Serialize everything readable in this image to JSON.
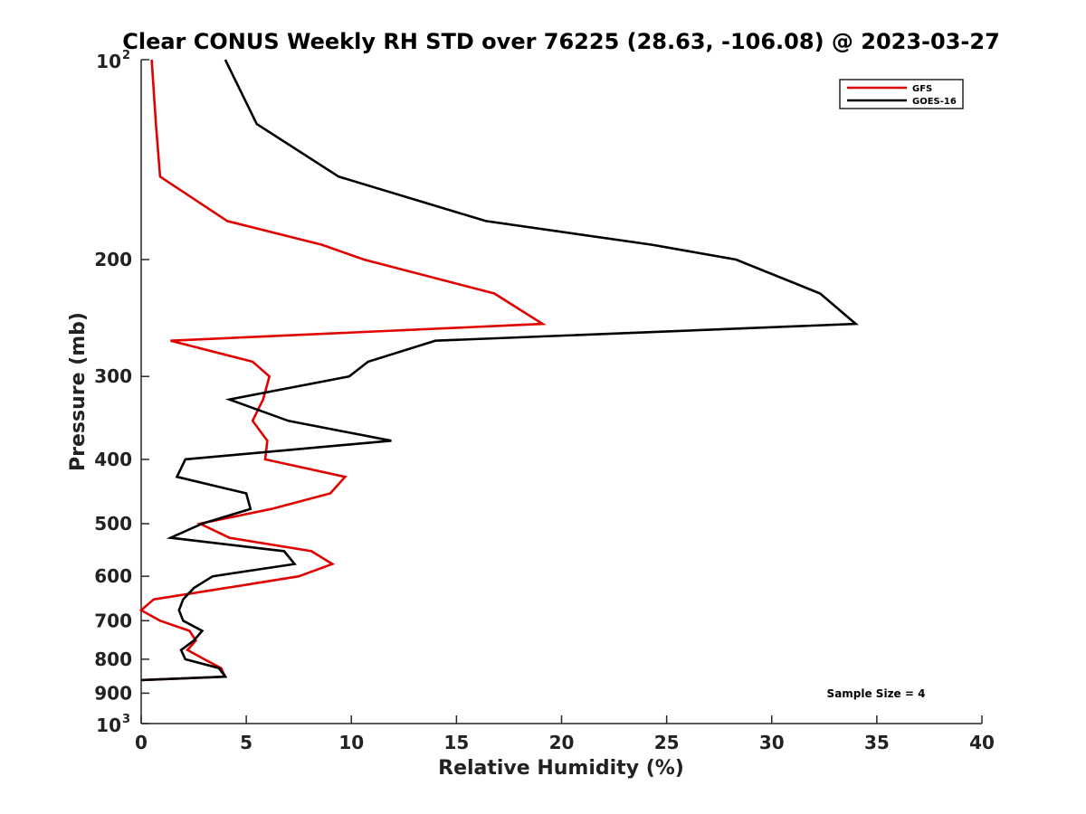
{
  "chart_data": {
    "type": "line",
    "title": "Clear CONUS Weekly RH STD over 76225 (28.63, -106.08) @ 2023-03-27",
    "xlabel": "Relative Humidity (%)",
    "ylabel": "Pressure (mb)",
    "xlim": [
      0,
      40
    ],
    "ylim": [
      100,
      1000
    ],
    "y_scale": "log",
    "y_reversed": true,
    "x_ticks": [
      0,
      5,
      10,
      15,
      20,
      25,
      30,
      35,
      40
    ],
    "y_ticks": [
      {
        "value": 100,
        "base": "10",
        "exp": "2"
      },
      {
        "value": 200,
        "label": "200"
      },
      {
        "value": 300,
        "label": "300"
      },
      {
        "value": 400,
        "label": "400"
      },
      {
        "value": 500,
        "label": "500"
      },
      {
        "value": 600,
        "label": "600"
      },
      {
        "value": 700,
        "label": "700"
      },
      {
        "value": 800,
        "label": "800"
      },
      {
        "value": 900,
        "label": "900"
      },
      {
        "value": 1000,
        "base": "10",
        "exp": "3"
      }
    ],
    "legend_position": "top-right",
    "grid": false,
    "annotation": "Sample Size = 4",
    "series": [
      {
        "name": "GFS",
        "color": "#e00000",
        "points": [
          [
            0.5,
            100
          ],
          [
            0.7,
            125
          ],
          [
            0.9,
            150
          ],
          [
            4.1,
            175
          ],
          [
            8.6,
            190
          ],
          [
            10.6,
            200
          ],
          [
            16.8,
            225
          ],
          [
            19.1,
            250
          ],
          [
            1.4,
            265
          ],
          [
            5.3,
            285
          ],
          [
            6.1,
            300
          ],
          [
            5.8,
            325
          ],
          [
            5.3,
            350
          ],
          [
            6.0,
            375
          ],
          [
            5.9,
            400
          ],
          [
            9.7,
            425
          ],
          [
            9.0,
            450
          ],
          [
            6.2,
            475
          ],
          [
            2.8,
            500
          ],
          [
            4.2,
            525
          ],
          [
            8.1,
            550
          ],
          [
            9.1,
            575
          ],
          [
            7.5,
            600
          ],
          [
            4.0,
            625
          ],
          [
            0.6,
            650
          ],
          [
            0.0,
            675
          ],
          [
            0.9,
            700
          ],
          [
            2.3,
            725
          ],
          [
            2.6,
            750
          ],
          [
            2.2,
            775
          ],
          [
            3.0,
            800
          ],
          [
            3.8,
            825
          ],
          [
            4.0,
            850
          ],
          [
            0.0,
            860
          ]
        ]
      },
      {
        "name": "GOES-16",
        "color": "#000000",
        "points": [
          [
            4.0,
            100
          ],
          [
            5.5,
            125
          ],
          [
            9.4,
            150
          ],
          [
            16.4,
            175
          ],
          [
            24.3,
            190
          ],
          [
            28.3,
            200
          ],
          [
            32.3,
            225
          ],
          [
            34.0,
            250
          ],
          [
            14.0,
            265
          ],
          [
            10.8,
            285
          ],
          [
            9.9,
            300
          ],
          [
            4.2,
            325
          ],
          [
            7.0,
            350
          ],
          [
            11.9,
            375
          ],
          [
            2.1,
            400
          ],
          [
            1.7,
            425
          ],
          [
            5.0,
            450
          ],
          [
            5.2,
            475
          ],
          [
            2.9,
            500
          ],
          [
            1.4,
            525
          ],
          [
            6.8,
            550
          ],
          [
            7.3,
            575
          ],
          [
            3.4,
            600
          ],
          [
            2.5,
            625
          ],
          [
            2.0,
            650
          ],
          [
            1.8,
            675
          ],
          [
            2.0,
            700
          ],
          [
            2.9,
            725
          ],
          [
            2.5,
            750
          ],
          [
            1.9,
            775
          ],
          [
            2.1,
            800
          ],
          [
            3.7,
            825
          ],
          [
            4.0,
            850
          ],
          [
            0.0,
            860
          ]
        ]
      }
    ]
  }
}
